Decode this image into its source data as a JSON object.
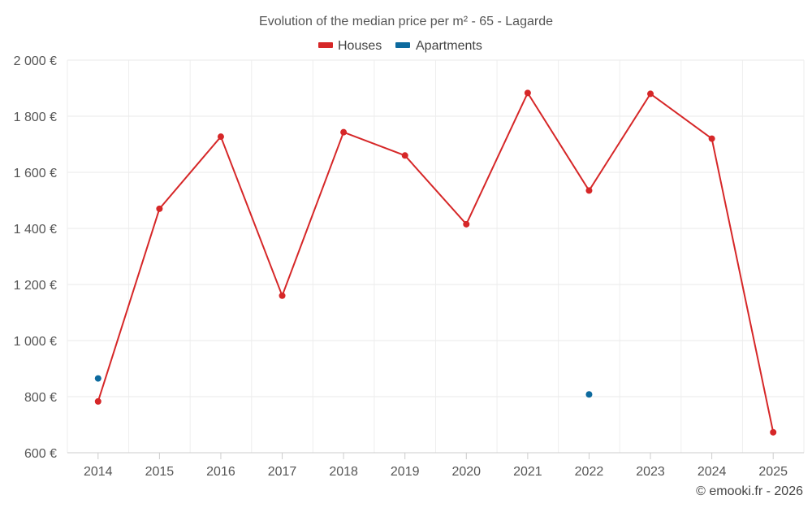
{
  "chart_data": {
    "type": "line",
    "title": "Evolution of the median price per m² - 65 - Lagarde",
    "xlabel": "",
    "ylabel": "",
    "categories": [
      "2014",
      "2015",
      "2016",
      "2017",
      "2018",
      "2019",
      "2020",
      "2021",
      "2022",
      "2023",
      "2024",
      "2025"
    ],
    "ylim": [
      600,
      2000
    ],
    "yticks": [
      600,
      800,
      1000,
      1200,
      1400,
      1600,
      1800,
      2000
    ],
    "ytick_labels": [
      "600 €",
      "800 €",
      "1 000 €",
      "1 200 €",
      "1 400 €",
      "1 600 €",
      "1 800 €",
      "2 000 €"
    ],
    "grid": true,
    "legend_position": "top-center",
    "series": [
      {
        "name": "Houses",
        "color": "#d62728",
        "values": [
          783,
          1470,
          1727,
          1160,
          1743,
          1660,
          1415,
          1883,
          1535,
          1880,
          1720,
          673
        ]
      },
      {
        "name": "Apartments",
        "color": "#0d6a9e",
        "values": [
          865,
          null,
          null,
          null,
          null,
          null,
          null,
          null,
          808,
          null,
          null,
          null
        ]
      }
    ]
  },
  "credit": "© emooki.fr - 2026"
}
